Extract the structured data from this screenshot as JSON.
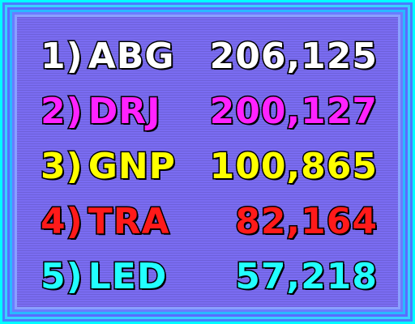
{
  "scoreboard": {
    "entries": [
      {
        "rank": "1)",
        "name": "ABG",
        "score": "206,125",
        "color": "#ffffff"
      },
      {
        "rank": "2)",
        "name": "DRJ",
        "score": "200,127",
        "color": "#ff22ff"
      },
      {
        "rank": "3)",
        "name": "GNP",
        "score": "100,865",
        "color": "#ffff00"
      },
      {
        "rank": "4)",
        "name": "TRA",
        "score": "82,164",
        "color": "#ff1a1a"
      },
      {
        "rank": "5)",
        "name": "LED",
        "score": "57,218",
        "color": "#22ffff"
      }
    ]
  }
}
